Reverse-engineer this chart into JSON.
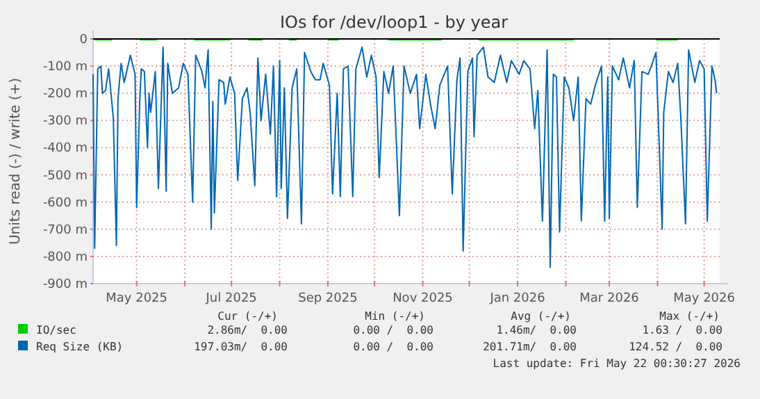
{
  "chart_data": {
    "type": "line",
    "title": "IOs for /dev/loop1 - by year",
    "ylabel": "Units read (-) / write (+)",
    "xlim": [
      "2025-04-03",
      "2026-05-11"
    ],
    "ylim": [
      -900,
      0
    ],
    "xticks": [
      {
        "value": "2025-05-01",
        "label": "May 2025"
      },
      {
        "value": "2025-06-01",
        "label": null
      },
      {
        "value": "2025-07-01",
        "label": "Jul 2025"
      },
      {
        "value": "2025-08-01",
        "label": null
      },
      {
        "value": "2025-09-01",
        "label": "Sep 2025"
      },
      {
        "value": "2025-10-01",
        "label": null
      },
      {
        "value": "2025-11-01",
        "label": "Nov 2025"
      },
      {
        "value": "2025-12-01",
        "label": null
      },
      {
        "value": "2026-01-01",
        "label": "Jan 2026"
      },
      {
        "value": "2026-02-01",
        "label": null
      },
      {
        "value": "2026-03-01",
        "label": "Mar 2026"
      },
      {
        "value": "2026-04-01",
        "label": null
      },
      {
        "value": "2026-05-01",
        "label": "May 2026"
      }
    ],
    "yticks": [
      {
        "value": -900,
        "label": "-900 m"
      },
      {
        "value": -800,
        "label": "-800 m"
      },
      {
        "value": -700,
        "label": "-700 m"
      },
      {
        "value": -600,
        "label": "-600 m"
      },
      {
        "value": -500,
        "label": "-500 m"
      },
      {
        "value": -400,
        "label": "-400 m"
      },
      {
        "value": -300,
        "label": "-300 m"
      },
      {
        "value": -200,
        "label": "-200 m"
      },
      {
        "value": -100,
        "label": "-100 m"
      },
      {
        "value": 0,
        "label": "0"
      }
    ],
    "grid": true,
    "legend": "bottom",
    "ref_lines": [
      {
        "axis": "y",
        "value": 0,
        "color": "#000000"
      }
    ],
    "series": [
      {
        "name": "IO/sec",
        "color": "#00cc00",
        "x": [
          "2025-04-04",
          "2025-04-15",
          "2025-04-16",
          "2025-05-03",
          "2025-05-14",
          "2025-05-15",
          "2025-06-07",
          "2025-06-30",
          "2025-07-01",
          "2025-07-12",
          "2025-07-21",
          "2025-07-22",
          "2025-08-07",
          "2025-08-12",
          "2025-08-13",
          "2025-09-01",
          "2025-09-08",
          "2025-09-09",
          "2025-10-10",
          "2025-11-13",
          "2025-11-14",
          "2025-12-07",
          "2025-12-08",
          "2026-01-07",
          "2026-02-06",
          "2026-02-07",
          "2026-03-31",
          "2026-04-14"
        ],
        "values": [
          -3,
          -3,
          null,
          -3,
          -3,
          null,
          -3,
          -3,
          null,
          -3,
          -3,
          null,
          -3,
          -3,
          null,
          -3,
          -3,
          null,
          -3,
          -3,
          null,
          -3,
          -3,
          -3,
          -3,
          null,
          -3,
          -3
        ]
      },
      {
        "name": "Req Size (KB)",
        "color": "#0066b3",
        "x": [
          "2025-04-03",
          "2025-04-04",
          "2025-04-06",
          "2025-04-08",
          "2025-04-09",
          "2025-04-11",
          "2025-04-13",
          "2025-04-16",
          "2025-04-18",
          "2025-04-19",
          "2025-04-21",
          "2025-04-23",
          "2025-04-27",
          "2025-04-30",
          "2025-05-01",
          "2025-05-03",
          "2025-05-04",
          "2025-05-06",
          "2025-05-08",
          "2025-05-09",
          "2025-05-10",
          "2025-05-13",
          "2025-05-15",
          "2025-05-18",
          "2025-05-20",
          "2025-05-21",
          "2025-05-24",
          "2025-05-28",
          "2025-05-31",
          "2025-06-03",
          "2025-06-06",
          "2025-06-08",
          "2025-06-12",
          "2025-06-14",
          "2025-06-16",
          "2025-06-18",
          "2025-06-19",
          "2025-06-20",
          "2025-06-23",
          "2025-06-26",
          "2025-06-27",
          "2025-06-30",
          "2025-07-03",
          "2025-07-05",
          "2025-07-08",
          "2025-07-11",
          "2025-07-13",
          "2025-07-16",
          "2025-07-18",
          "2025-07-20",
          "2025-07-23",
          "2025-07-26",
          "2025-07-28",
          "2025-07-30",
          "2025-08-01",
          "2025-08-02",
          "2025-08-04",
          "2025-08-06",
          "2025-08-09",
          "2025-08-12",
          "2025-08-15",
          "2025-08-17",
          "2025-08-21",
          "2025-08-24",
          "2025-08-27",
          "2025-08-29",
          "2025-09-02",
          "2025-09-04",
          "2025-09-07",
          "2025-09-09",
          "2025-09-11",
          "2025-09-14",
          "2025-09-17",
          "2025-09-19",
          "2025-09-23",
          "2025-09-26",
          "2025-09-29",
          "2025-10-02",
          "2025-10-04",
          "2025-10-07",
          "2025-10-10",
          "2025-10-13",
          "2025-10-17",
          "2025-10-20",
          "2025-10-24",
          "2025-10-28",
          "2025-10-30",
          "2025-11-03",
          "2025-11-06",
          "2025-11-09",
          "2025-11-12",
          "2025-11-17",
          "2025-11-20",
          "2025-11-23",
          "2025-11-25",
          "2025-11-27",
          "2025-11-30",
          "2025-12-03",
          "2025-12-04",
          "2025-12-06",
          "2025-12-10",
          "2025-12-13",
          "2025-12-17",
          "2025-12-21",
          "2025-12-25",
          "2025-12-28",
          "2026-01-02",
          "2026-01-05",
          "2026-01-09",
          "2026-01-12",
          "2026-01-14",
          "2026-01-17",
          "2026-01-20",
          "2026-01-22",
          "2026-01-24",
          "2026-01-26",
          "2026-01-28",
          "2026-01-31",
          "2026-02-03",
          "2026-02-06",
          "2026-02-09",
          "2026-02-11",
          "2026-02-14",
          "2026-02-17",
          "2026-02-20",
          "2026-02-24",
          "2026-02-26",
          "2026-02-28",
          "2026-03-01",
          "2026-03-03",
          "2026-03-07",
          "2026-03-10",
          "2026-03-14",
          "2026-03-17",
          "2026-03-19",
          "2026-03-22",
          "2026-03-26",
          "2026-03-28",
          "2026-03-31",
          "2026-04-04",
          "2026-04-05",
          "2026-04-08",
          "2026-04-11",
          "2026-04-14",
          "2026-04-16",
          "2026-04-19",
          "2026-04-21",
          "2026-04-25",
          "2026-04-28",
          "2026-05-01",
          "2026-05-03",
          "2026-05-06",
          "2026-05-08",
          "2026-05-09"
        ],
        "values": [
          -130,
          -770,
          -110,
          -100,
          -200,
          -190,
          -110,
          -290,
          -760,
          -220,
          -90,
          -160,
          -60,
          -130,
          -620,
          -230,
          -110,
          -120,
          -400,
          -200,
          -270,
          -120,
          -550,
          -30,
          -560,
          -90,
          -200,
          -180,
          -90,
          -130,
          -600,
          -60,
          -120,
          -180,
          -40,
          -700,
          -230,
          -640,
          -150,
          -160,
          -240,
          -140,
          -200,
          -520,
          -220,
          -180,
          -270,
          -540,
          -70,
          -300,
          -130,
          -350,
          -100,
          -580,
          -80,
          -550,
          -180,
          -660,
          -180,
          -110,
          -680,
          -50,
          -120,
          -150,
          -150,
          -90,
          -170,
          -570,
          -200,
          -580,
          -110,
          -100,
          -580,
          -110,
          -30,
          -140,
          -60,
          -140,
          -510,
          -120,
          -200,
          -100,
          -650,
          -100,
          -200,
          -130,
          -330,
          -130,
          -240,
          -330,
          -170,
          -100,
          -570,
          -150,
          -70,
          -780,
          -120,
          -70,
          -360,
          -60,
          -30,
          -140,
          -160,
          -60,
          -160,
          -80,
          -130,
          -80,
          -110,
          -330,
          -190,
          -670,
          -40,
          -840,
          -130,
          -140,
          -710,
          -140,
          -180,
          -300,
          -140,
          -670,
          -220,
          -240,
          -170,
          -100,
          -670,
          -140,
          -660,
          -100,
          -150,
          -70,
          -180,
          -80,
          -620,
          -120,
          -130,
          -100,
          -50,
          -700,
          -270,
          -120,
          -160,
          -90,
          -290,
          -680,
          -40,
          -160,
          -80,
          -110,
          -670,
          -100,
          -150,
          -200
        ]
      }
    ],
    "annotations": [
      "Cur (-/+)",
      "Min (-/+)",
      "Avg (-/+)",
      "Max (-/+)",
      "2.86m/  0.00",
      "0.00 /  0.00",
      "1.46m/  0.00",
      "1.63 /  0.00",
      "197.03m/  0.00",
      "0.00 /  0.00",
      "201.71m/  0.00",
      "124.52 /  0.00",
      "Last update: Fri May 22 00:30:27 2026"
    ]
  }
}
